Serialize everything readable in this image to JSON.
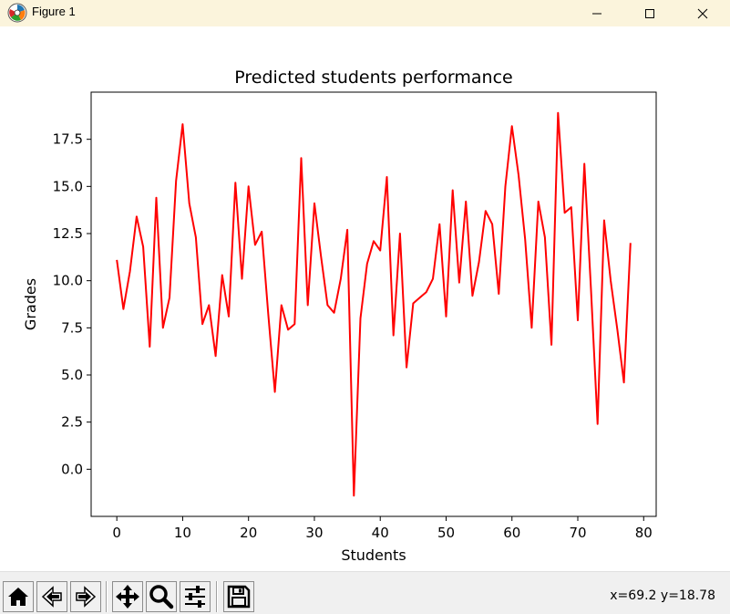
{
  "window": {
    "title": "Figure 1"
  },
  "chart_data": {
    "type": "line",
    "title": "Predicted students performance",
    "xlabel": "Students",
    "ylabel": "Grades",
    "xlim": [
      -3.9,
      81.9
    ],
    "ylim": [
      -2.5,
      20.0
    ],
    "xticks": [
      0,
      10,
      20,
      30,
      40,
      50,
      60,
      70,
      80
    ],
    "yticks": [
      0.0,
      2.5,
      5.0,
      7.5,
      10.0,
      12.5,
      15.0,
      17.5
    ],
    "ytick_labels": [
      "0.0",
      "2.5",
      "5.0",
      "7.5",
      "10.0",
      "12.5",
      "15.0",
      "17.5"
    ],
    "grid": false,
    "series": [
      {
        "color": "#ff0000",
        "x": [
          0,
          1,
          2,
          3,
          4,
          5,
          6,
          7,
          8,
          9,
          10,
          11,
          12,
          13,
          14,
          15,
          16,
          17,
          18,
          19,
          20,
          21,
          22,
          23,
          24,
          25,
          26,
          27,
          28,
          29,
          30,
          31,
          32,
          33,
          34,
          35,
          36,
          37,
          38,
          39,
          40,
          41,
          42,
          43,
          44,
          45,
          46,
          47,
          48,
          49,
          50,
          51,
          52,
          53,
          54,
          55,
          56,
          57,
          58,
          59,
          60,
          61,
          62,
          63,
          64,
          65,
          66,
          67,
          68,
          69,
          70,
          71,
          72,
          73,
          74,
          75,
          76,
          77,
          78
        ],
        "values": [
          11.1,
          8.5,
          10.5,
          13.4,
          11.8,
          6.5,
          14.4,
          7.5,
          9.1,
          15.3,
          18.3,
          14.1,
          12.3,
          7.7,
          8.7,
          6.0,
          10.3,
          8.1,
          15.2,
          10.1,
          15.0,
          11.9,
          12.6,
          8.2,
          4.1,
          8.7,
          7.4,
          7.7,
          16.5,
          8.7,
          14.1,
          11.3,
          8.7,
          8.3,
          10.1,
          12.7,
          -1.4,
          8.0,
          10.9,
          12.1,
          11.6,
          15.5,
          7.1,
          12.5,
          5.4,
          8.8,
          9.1,
          9.4,
          10.1,
          13.0,
          8.1,
          14.8,
          9.9,
          14.2,
          9.2,
          11.0,
          13.7,
          13.0,
          9.3,
          15.0,
          18.2,
          15.6,
          12.2,
          7.5,
          14.2,
          12.3,
          6.6,
          18.9,
          13.6,
          13.9,
          7.9,
          16.2,
          9.5,
          2.4,
          13.2,
          10.0,
          7.4,
          4.6,
          12.0
        ]
      }
    ]
  },
  "toolbar": {
    "buttons": [
      {
        "name": "home-button",
        "icon": "home-icon"
      },
      {
        "name": "back-button",
        "icon": "arrow-left-icon"
      },
      {
        "name": "forward-button",
        "icon": "arrow-right-icon"
      },
      {
        "name": "pan-button",
        "icon": "move-icon"
      },
      {
        "name": "zoom-button",
        "icon": "magnifier-icon"
      },
      {
        "name": "configure-subplots-button",
        "icon": "sliders-icon"
      },
      {
        "name": "save-button",
        "icon": "floppy-disk-icon"
      }
    ],
    "coords": "x=69.2 y=18.78"
  }
}
